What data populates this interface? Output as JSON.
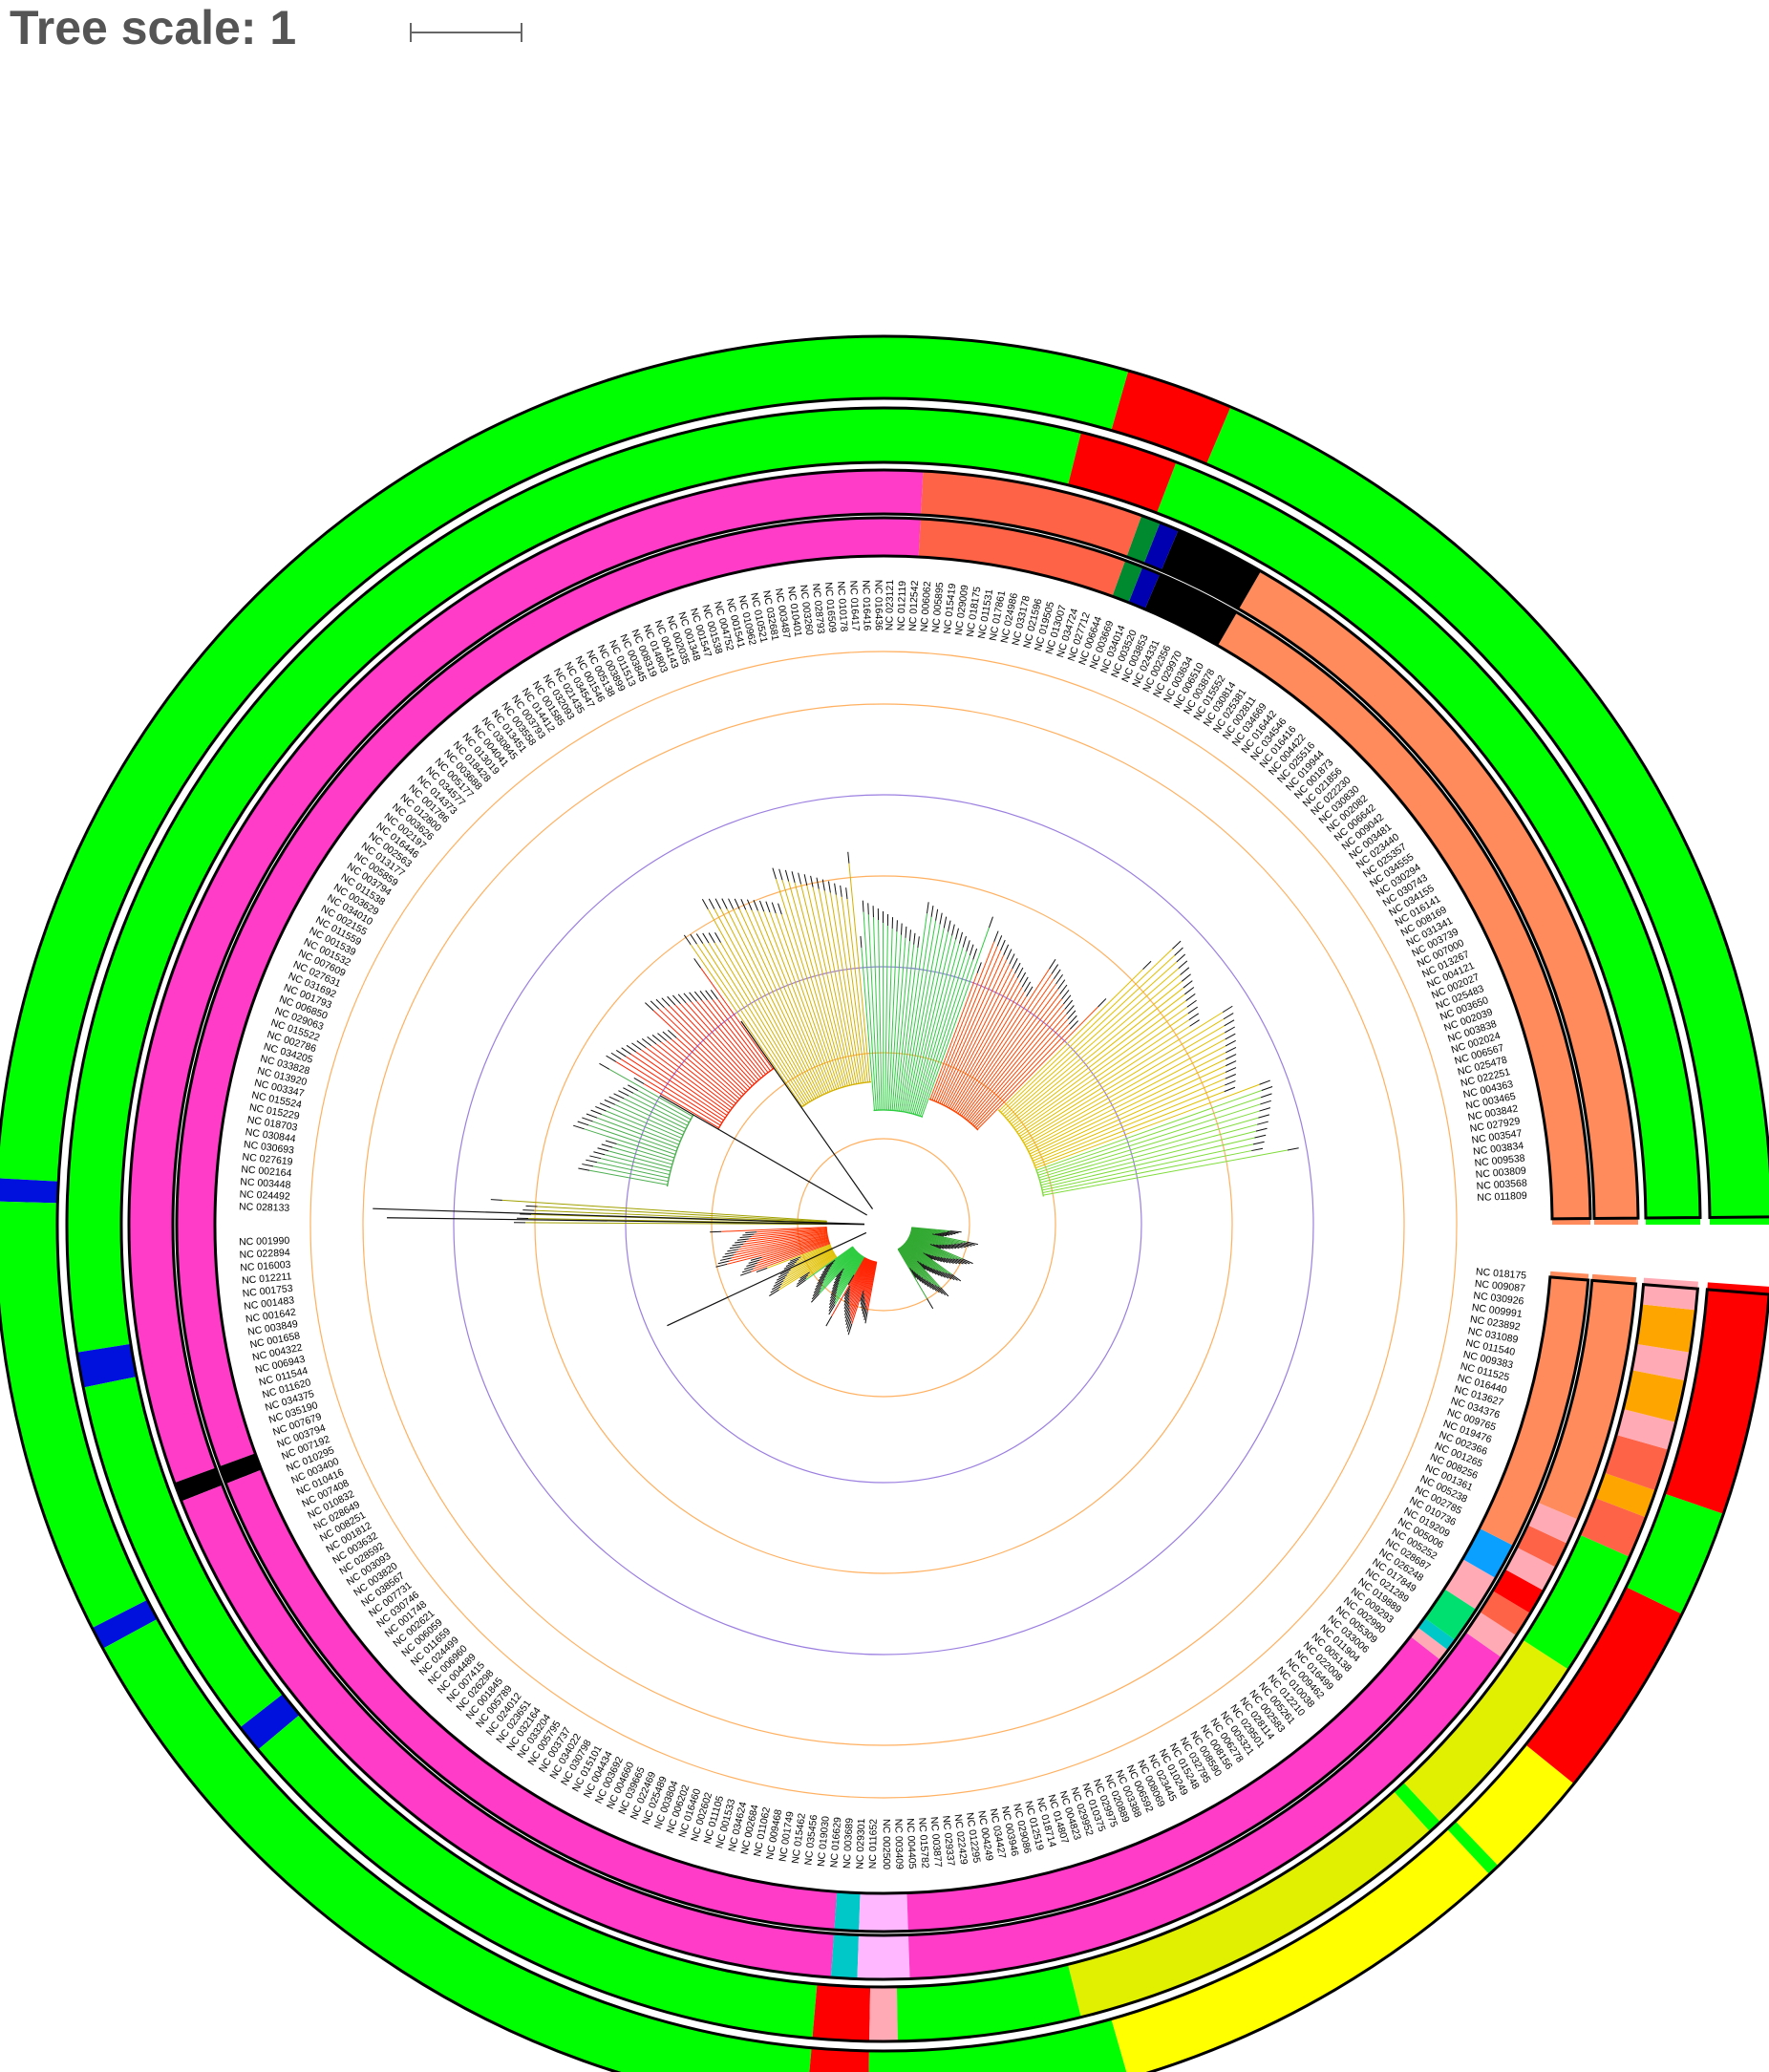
{
  "header": {
    "tree_scale_label": "Tree scale: 1"
  },
  "colors": {
    "green": "#00ff00",
    "red": "#ff0000",
    "yellow": "#ffff00",
    "blue": "#0011dd",
    "lime_yellow": "#e0f000",
    "salmon": "#ff8a5c",
    "tomato": "#ff6347",
    "pink": "#ffaab4",
    "magenta": "#ff3cc8",
    "orange": "#ffa500",
    "black": "#000000",
    "sky": "#0aa0ff",
    "spring": "#00e070",
    "lavender": "#ffb8ff",
    "cyan": "#00c8c8",
    "dkgreen": "#008a30",
    "navy": "#0000b0",
    "ring_outline": "#000000",
    "grid_orange": "#ffb060",
    "grid_purple": "#9b7fe0"
  },
  "rings": [
    {
      "id": "ring-1",
      "segments": [
        [
          "green",
          0,
          67
        ],
        [
          "red",
          67,
          74
        ],
        [
          "green",
          74,
          177
        ],
        [
          "blue",
          177,
          178.5
        ],
        [
          "green",
          178.5,
          207
        ],
        [
          "blue",
          207,
          208.5
        ],
        [
          "green",
          208.5,
          265
        ],
        [
          "red",
          265,
          269
        ],
        [
          "green",
          269,
          286
        ],
        [
          "yellow",
          286,
          313
        ],
        [
          "green",
          313,
          313.8
        ],
        [
          "yellow",
          313.8,
          321
        ],
        [
          "red",
          321,
          334
        ],
        [
          "green",
          334,
          341
        ],
        [
          "red",
          341,
          360
        ]
      ]
    },
    {
      "id": "ring-2",
      "segments": [
        [
          "green",
          0,
          69
        ],
        [
          "red",
          69,
          76
        ],
        [
          "green",
          76,
          189
        ],
        [
          "blue",
          189,
          191.5
        ],
        [
          "green",
          191.5,
          218
        ],
        [
          "blue",
          218,
          220
        ],
        [
          "green",
          220,
          265
        ],
        [
          "red",
          265,
          269
        ],
        [
          "pink",
          269,
          271
        ],
        [
          "green",
          271,
          284
        ],
        [
          "lime_yellow",
          284,
          312
        ],
        [
          "green",
          312,
          313
        ],
        [
          "lime_yellow",
          313,
          327
        ],
        [
          "green",
          327,
          336
        ],
        [
          "tomato",
          336,
          339
        ],
        [
          "orange",
          339,
          341
        ],
        [
          "tomato",
          341,
          344
        ],
        [
          "pink",
          344,
          346
        ],
        [
          "orange",
          346,
          349
        ],
        [
          "pink",
          349,
          351
        ],
        [
          "orange",
          351,
          354
        ],
        [
          "pink",
          354,
          356
        ],
        [
          "orange",
          356,
          358
        ],
        [
          "red",
          358,
          359
        ],
        [
          "orange",
          359,
          360
        ]
      ]
    },
    {
      "id": "ring-3",
      "segments": [
        [
          "salmon",
          0,
          60
        ],
        [
          "black",
          60,
          67
        ],
        [
          "navy",
          67,
          68.5
        ],
        [
          "dkgreen",
          68.5,
          70
        ],
        [
          "tomato",
          70,
          87
        ],
        [
          "magenta",
          87,
          200
        ],
        [
          "black",
          200,
          201.5
        ],
        [
          "magenta",
          201.5,
          266
        ],
        [
          "cyan",
          266,
          268
        ],
        [
          "lavender",
          268,
          272
        ],
        [
          "magenta",
          272,
          325
        ],
        [
          "pink",
          325,
          327
        ],
        [
          "tomato",
          327,
          329
        ],
        [
          "red",
          329,
          331
        ],
        [
          "pink",
          331,
          333
        ],
        [
          "tomato",
          333,
          335
        ],
        [
          "pink",
          335,
          337
        ],
        [
          "salmon",
          337,
          360
        ]
      ]
    },
    {
      "id": "ring-4",
      "segments": [
        [
          "salmon",
          0,
          60
        ],
        [
          "black",
          60,
          67
        ],
        [
          "navy",
          67,
          68.5
        ],
        [
          "dkgreen",
          68.5,
          70
        ],
        [
          "tomato",
          70,
          87
        ],
        [
          "magenta",
          87,
          200
        ],
        [
          "black",
          200,
          201.5
        ],
        [
          "magenta",
          201.5,
          266
        ],
        [
          "cyan",
          266,
          268
        ],
        [
          "lavender",
          268,
          272
        ],
        [
          "magenta",
          272,
          322
        ],
        [
          "pink",
          322,
          323
        ],
        [
          "cyan",
          323,
          324
        ],
        [
          "spring",
          324,
          327
        ],
        [
          "pink",
          327,
          330
        ],
        [
          "sky",
          330,
          333
        ],
        [
          "salmon",
          333,
          360
        ]
      ]
    }
  ],
  "leaves_upper": [
    "NC 011809",
    "NC 003568",
    "NC 003809",
    "NC 009538",
    "NC 003834",
    "NC 003547",
    "NC 027929",
    "NC 003842",
    "NC 003465",
    "NC 004363",
    "NC 022251",
    "NC 025478",
    "NC 006567",
    "NC 002024",
    "NC 003838",
    "NC 002039",
    "NC 003650",
    "NC 025483",
    "NC 002027",
    "NC 004121",
    "NC 013267",
    "NC 007000",
    "NC 003739",
    "NC 031341",
    "NC 008169",
    "NC 016141",
    "NC 034155",
    "NC 030743",
    "NC 030294",
    "NC 034555",
    "NC 025357",
    "NC 023440",
    "NC 003481",
    "NC 009042",
    "NC 006642",
    "NC 002082",
    "NC 030830",
    "NC 022230",
    "NC 021856",
    "NC 001873",
    "NC 019944",
    "NC 025516",
    "NC 004422",
    "NC 016416",
    "NC 034546",
    "NC 016442",
    "NC 034669",
    "NC 002811",
    "NC 025381",
    "NC 030814",
    "NC 015552",
    "NC 003878",
    "NC 006510",
    "NC 003634",
    "NC 029970",
    "NC 002356",
    "NC 024331",
    "NC 003853",
    "NC 003520",
    "NC 034014",
    "NC 003669",
    "NC 006644",
    "NC 027712",
    "NC 034724",
    "NC 013007",
    "NC 019505",
    "NC 021596",
    "NC 033178",
    "NC 024986",
    "NC 017861",
    "NC 011531",
    "NC 018175",
    "NC 029009",
    "NC 015419",
    "NC 005895",
    "NC 006062",
    "NC 012542",
    "NC 012119",
    "NC 023121",
    "NC 016436",
    "NC 016416",
    "NC 016417",
    "NC 010178",
    "NC 016509",
    "NC 028793",
    "NC 003260",
    "NC 010401",
    "NC 003487",
    "NC 032681",
    "NC 010521",
    "NC 010962",
    "NC 001541",
    "NC 004752",
    "NC 001538",
    "NC 001547",
    "NC 001348",
    "NC 002035",
    "NC 004143",
    "NC 014803",
    "NC 008319",
    "NC 003845",
    "NC 011513",
    "NC 003899",
    "NC 005138",
    "NC 001546",
    "NC 034547",
    "NC 021435",
    "NC 032093",
    "NC 001585",
    "NC 014412",
    "NC 003793",
    "NC 003558",
    "NC 013451",
    "NC 030845",
    "NC 004041",
    "NC 013019",
    "NC 018428",
    "NC 003688",
    "NC 005177",
    "NC 034577",
    "NC 014373",
    "NC 001786",
    "NC 012800",
    "NC 003626",
    "NC 002197",
    "NC 016446",
    "NC 002563",
    "NC 013177",
    "NC 005859",
    "NC 003794",
    "NC 011538",
    "NC 003629",
    "NC 034010",
    "NC 002155",
    "NC 011559",
    "NC 001539",
    "NC 001532",
    "NC 007609",
    "NC 027631",
    "NC 031692",
    "NC 001793",
    "NC 006850",
    "NC 029063",
    "NC 015522",
    "NC 002786",
    "NC 034205",
    "NC 033828",
    "NC 013920",
    "NC 003347",
    "NC 015524",
    "NC 015229",
    "NC 018703",
    "NC 030844",
    "NC 030693",
    "NC 027619",
    "NC 002164",
    "NC 003448",
    "NC 024492",
    "NC 028133"
  ],
  "leaves_lower": [
    "NC 001990",
    "NC 022894",
    "NC 016003",
    "NC 012211",
    "NC 001753",
    "NC 001483",
    "NC 001642",
    "NC 003849",
    "NC 001658",
    "NC 004322",
    "NC 006943",
    "NC 011544",
    "NC 011620",
    "NC 034375",
    "NC 035190",
    "NC 007679",
    "NC 003794",
    "NC 007192",
    "NC 010295",
    "NC 003400",
    "NC 010416",
    "NC 007408",
    "NC 010832",
    "NC 028649",
    "NC 008251",
    "NC 001812",
    "NC 003632",
    "NC 028592",
    "NC 003093",
    "NC 003820",
    "NC 038567",
    "NC 007731",
    "NC 030746",
    "NC 001748",
    "NC 002621",
    "NC 006059",
    "NC 011659",
    "NC 024499",
    "NC 006960",
    "NC 004489",
    "NC 007415",
    "NC 026298",
    "NC 001845",
    "NC 005789",
    "NC 024012",
    "NC 023651",
    "NC 032164",
    "NC 033204",
    "NC 005795",
    "NC 003737",
    "NC 034022",
    "NC 030798",
    "NC 015101",
    "NC 004434",
    "NC 003692",
    "NC 004660",
    "NC 039665",
    "NC 022469",
    "NC 025489",
    "NC 003804",
    "NC 006202",
    "NC 016460",
    "NC 002602",
    "NC 011105",
    "NC 001533",
    "NC 034624",
    "NC 002684",
    "NC 011062",
    "NC 009468",
    "NC 001749",
    "NC 015462",
    "NC 035456",
    "NC 019030",
    "NC 016629",
    "NC 003689",
    "NC 029301",
    "NC 011652",
    "NC 002500",
    "NC 003409",
    "NC 004405",
    "NC 015782",
    "NC 003877",
    "NC 029337",
    "NC 022429",
    "NC 012295",
    "NC 004249",
    "NC 034427",
    "NC 003946",
    "NC 029086",
    "NC 012519",
    "NC 018714",
    "NC 014807",
    "NC 004823",
    "NC 029952",
    "NC 010375",
    "NC 029975",
    "NC 020889",
    "NC 003388",
    "NC 006592",
    "NC 008069",
    "NC 023445",
    "NC 010249",
    "NC 015248",
    "NC 032795",
    "NC 008590",
    "NC 008156",
    "NC 006278",
    "NC 005321",
    "NC 029501",
    "NC 028114",
    "NC 002583",
    "NC 005261",
    "NC 012210",
    "NC 010038",
    "NC 009462",
    "NC 016499",
    "NC 022008",
    "NC 005138",
    "NC 011904",
    "NC 033006",
    "NC 005309",
    "NC 002990",
    "NC 009293",
    "NC 019889",
    "NC 021289",
    "NC 017849",
    "NC 026248",
    "NC 028687",
    "NC 005252",
    "NC 005006",
    "NC 019209",
    "NC 010736",
    "NC 002785",
    "NC 005238",
    "NC 001361",
    "NC 008256",
    "NC 001265",
    "NC 002366",
    "NC 019476",
    "NC 009765",
    "NC 034376",
    "NC 013627",
    "NC 016440",
    "NC 011525",
    "NC 009383",
    "NC 011540",
    "NC 031089",
    "NC 023892",
    "NC 009991",
    "NC 030926",
    "NC 009087",
    "NC 018175"
  ]
}
